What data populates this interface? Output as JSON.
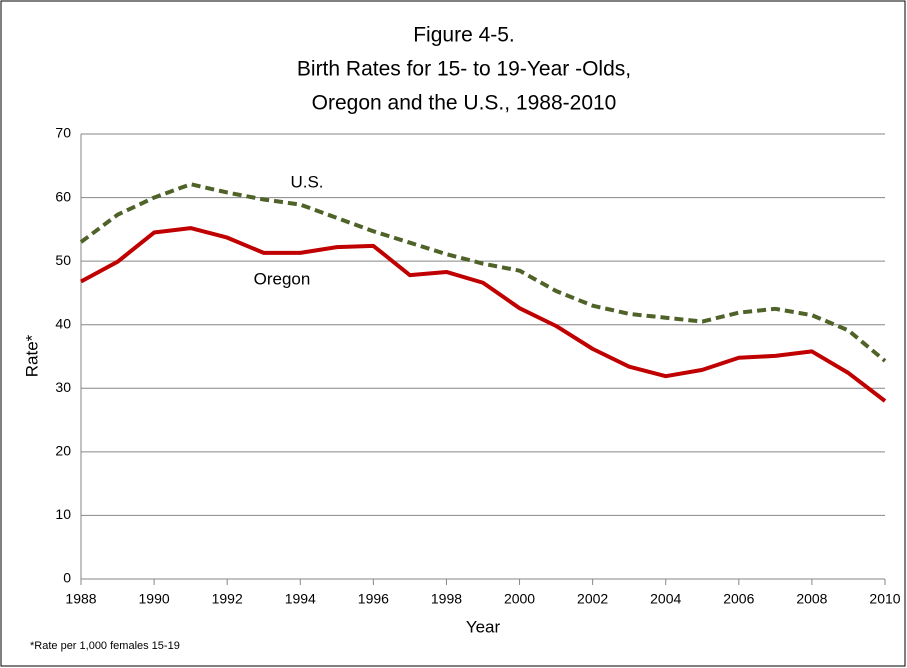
{
  "chart_data": {
    "type": "line",
    "title": [
      "Figure 4-5.",
      "Birth Rates for 15- to 19-Year -Olds,",
      "Oregon and the U.S., 1988-2010"
    ],
    "x_label": "Year",
    "y_label": "Rate*",
    "note": "*Rate per 1,000 females 15-19",
    "x": [
      1988,
      1989,
      1990,
      1991,
      1992,
      1993,
      1994,
      1995,
      1996,
      1997,
      1998,
      1999,
      2000,
      2001,
      2002,
      2003,
      2004,
      2005,
      2006,
      2007,
      2008,
      2009,
      2010
    ],
    "series": [
      {
        "name": "U.S.",
        "color": "#4f6228",
        "dash": true,
        "values": [
          53.0,
          57.3,
          60.0,
          62.1,
          60.8,
          59.7,
          58.9,
          56.8,
          54.7,
          52.9,
          51.1,
          49.6,
          48.5,
          45.3,
          43.0,
          41.7,
          41.1,
          40.5,
          41.9,
          42.5,
          41.5,
          39.1,
          34.3
        ]
      },
      {
        "name": "Oregon",
        "color": "#c00000",
        "dash": false,
        "values": [
          46.8,
          49.9,
          54.5,
          55.2,
          53.7,
          51.3,
          51.3,
          52.2,
          52.4,
          47.8,
          48.3,
          46.6,
          42.6,
          39.8,
          36.2,
          33.4,
          31.9,
          32.9,
          34.8,
          35.1,
          35.8,
          32.4,
          28.0
        ]
      }
    ],
    "xlim": [
      1988,
      2010
    ],
    "xticks": [
      1988,
      1990,
      1992,
      1994,
      1996,
      1998,
      2000,
      2002,
      2004,
      2006,
      2008,
      2010
    ],
    "ylim": [
      0,
      70
    ],
    "yticks": [
      0,
      10,
      20,
      30,
      40,
      50,
      60,
      70
    ],
    "grid": true
  }
}
